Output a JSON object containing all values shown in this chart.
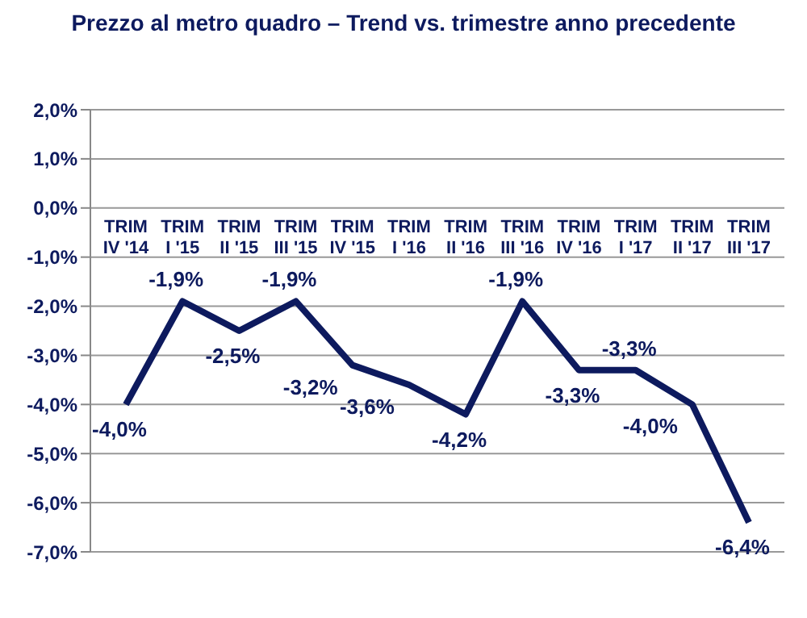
{
  "chart_data": {
    "type": "line",
    "title": "Prezzo al metro quadro – Trend vs. trimestre anno precedente",
    "categories": [
      "TRIM IV '14",
      "TRIM I '15",
      "TRIM II '15",
      "TRIM III '15",
      "TRIM IV '15",
      "TRIM I '16",
      "TRIM II '16",
      "TRIM III '16",
      "TRIM IV '16",
      "TRIM I '17",
      "TRIM II '17",
      "TRIM III '17"
    ],
    "series": [
      {
        "color": "#0d1a5e",
        "values": [
          -4.0,
          -1.9,
          -2.5,
          -1.9,
          -3.2,
          -3.6,
          -4.2,
          -1.9,
          -3.3,
          -3.3,
          -4.0,
          -6.4
        ],
        "value_labels": [
          "-4,0%",
          "-1,9%",
          "-2,5%",
          "-1,9%",
          "-3,2%",
          "-3,6%",
          "-4,2%",
          "-1,9%",
          "-3,3%",
          "-3,3%",
          "-4,0%",
          "-6,4%"
        ]
      }
    ],
    "ylim": [
      -7,
      2
    ],
    "yticks": [
      {
        "value": 2,
        "label": "2,0%"
      },
      {
        "value": 1,
        "label": "1,0%"
      },
      {
        "value": 0,
        "label": "0,0%"
      },
      {
        "value": -1,
        "label": "-1,0%"
      },
      {
        "value": -2,
        "label": "-2,0%"
      },
      {
        "value": -3,
        "label": "-3,0%"
      },
      {
        "value": -4,
        "label": "-4,0%"
      },
      {
        "value": -5,
        "label": "-5,0%"
      },
      {
        "value": -6,
        "label": "-6,0%"
      },
      {
        "value": -7,
        "label": "-7,0%"
      }
    ],
    "grid": "y",
    "marker": "none",
    "line_style": "solid",
    "legend": false
  }
}
